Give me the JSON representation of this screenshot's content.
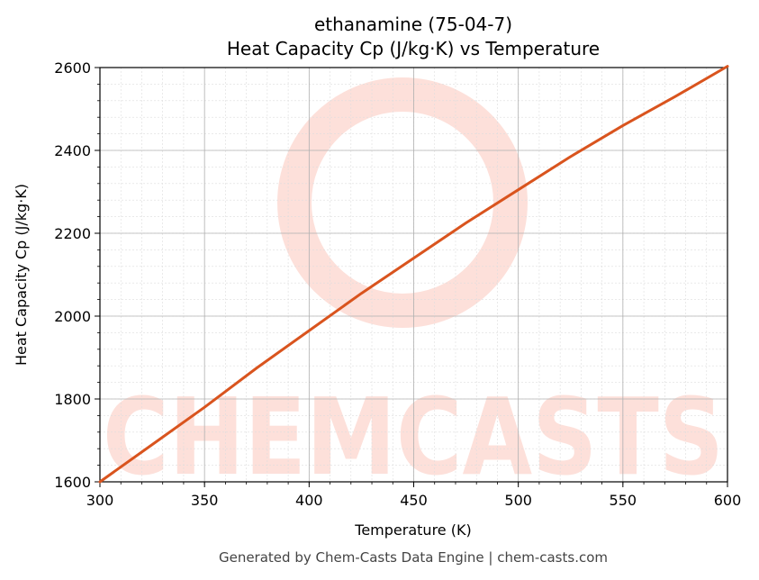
{
  "chart_data": {
    "type": "line",
    "title_line1": "ethanamine (75-04-7)",
    "title_line2": "Heat Capacity Cp (J/kg·K) vs Temperature",
    "xlabel": "Temperature (K)",
    "ylabel": "Heat Capacity Cp (J/kg·K)",
    "xlim": [
      300,
      600
    ],
    "ylim": [
      1600,
      2600
    ],
    "xticks": [
      300,
      350,
      400,
      450,
      500,
      550,
      600
    ],
    "yticks": [
      1600,
      1800,
      2000,
      2200,
      2400,
      2600
    ],
    "grid": true,
    "series": [
      {
        "color": "#d9541e",
        "x": [
          300,
          325,
          350,
          375,
          400,
          425,
          450,
          475,
          500,
          525,
          550,
          575,
          600
        ],
        "y": [
          1600,
          1690,
          1780,
          1875,
          1965,
          2055,
          2140,
          2225,
          2305,
          2385,
          2460,
          2530,
          2603
        ]
      }
    ]
  },
  "watermark": {
    "text": "CHEMCASTS",
    "color": "#fde0da"
  },
  "footer": "Generated by Chem-Casts Data Engine | chem-casts.com"
}
